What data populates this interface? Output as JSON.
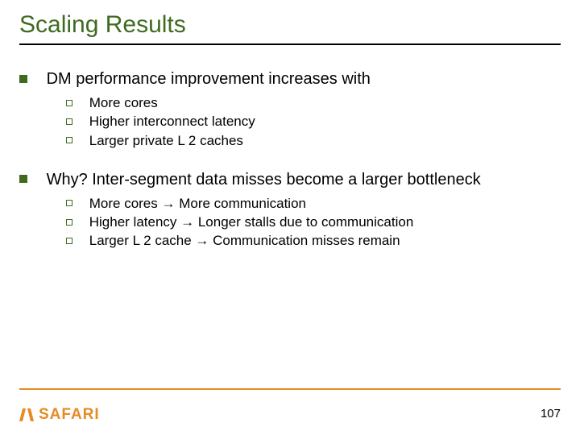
{
  "title": "Scaling Results",
  "colors": {
    "accent_green": "#3f6b21",
    "accent_orange": "#e78b24",
    "text": "#000000",
    "background": "#ffffff"
  },
  "bullets": [
    {
      "text": "DM performance improvement increases with",
      "sub": [
        "More cores",
        "Higher interconnect latency",
        "Larger private L 2 caches"
      ]
    },
    {
      "text": "Why? Inter-segment data misses become a larger bottleneck",
      "sub": [
        "More cores → More communication",
        "Higher latency → Longer stalls due to communication",
        "Larger L 2 cache → Communication misses remain"
      ]
    }
  ],
  "logo_text": "SAFARI",
  "page_number": "107"
}
